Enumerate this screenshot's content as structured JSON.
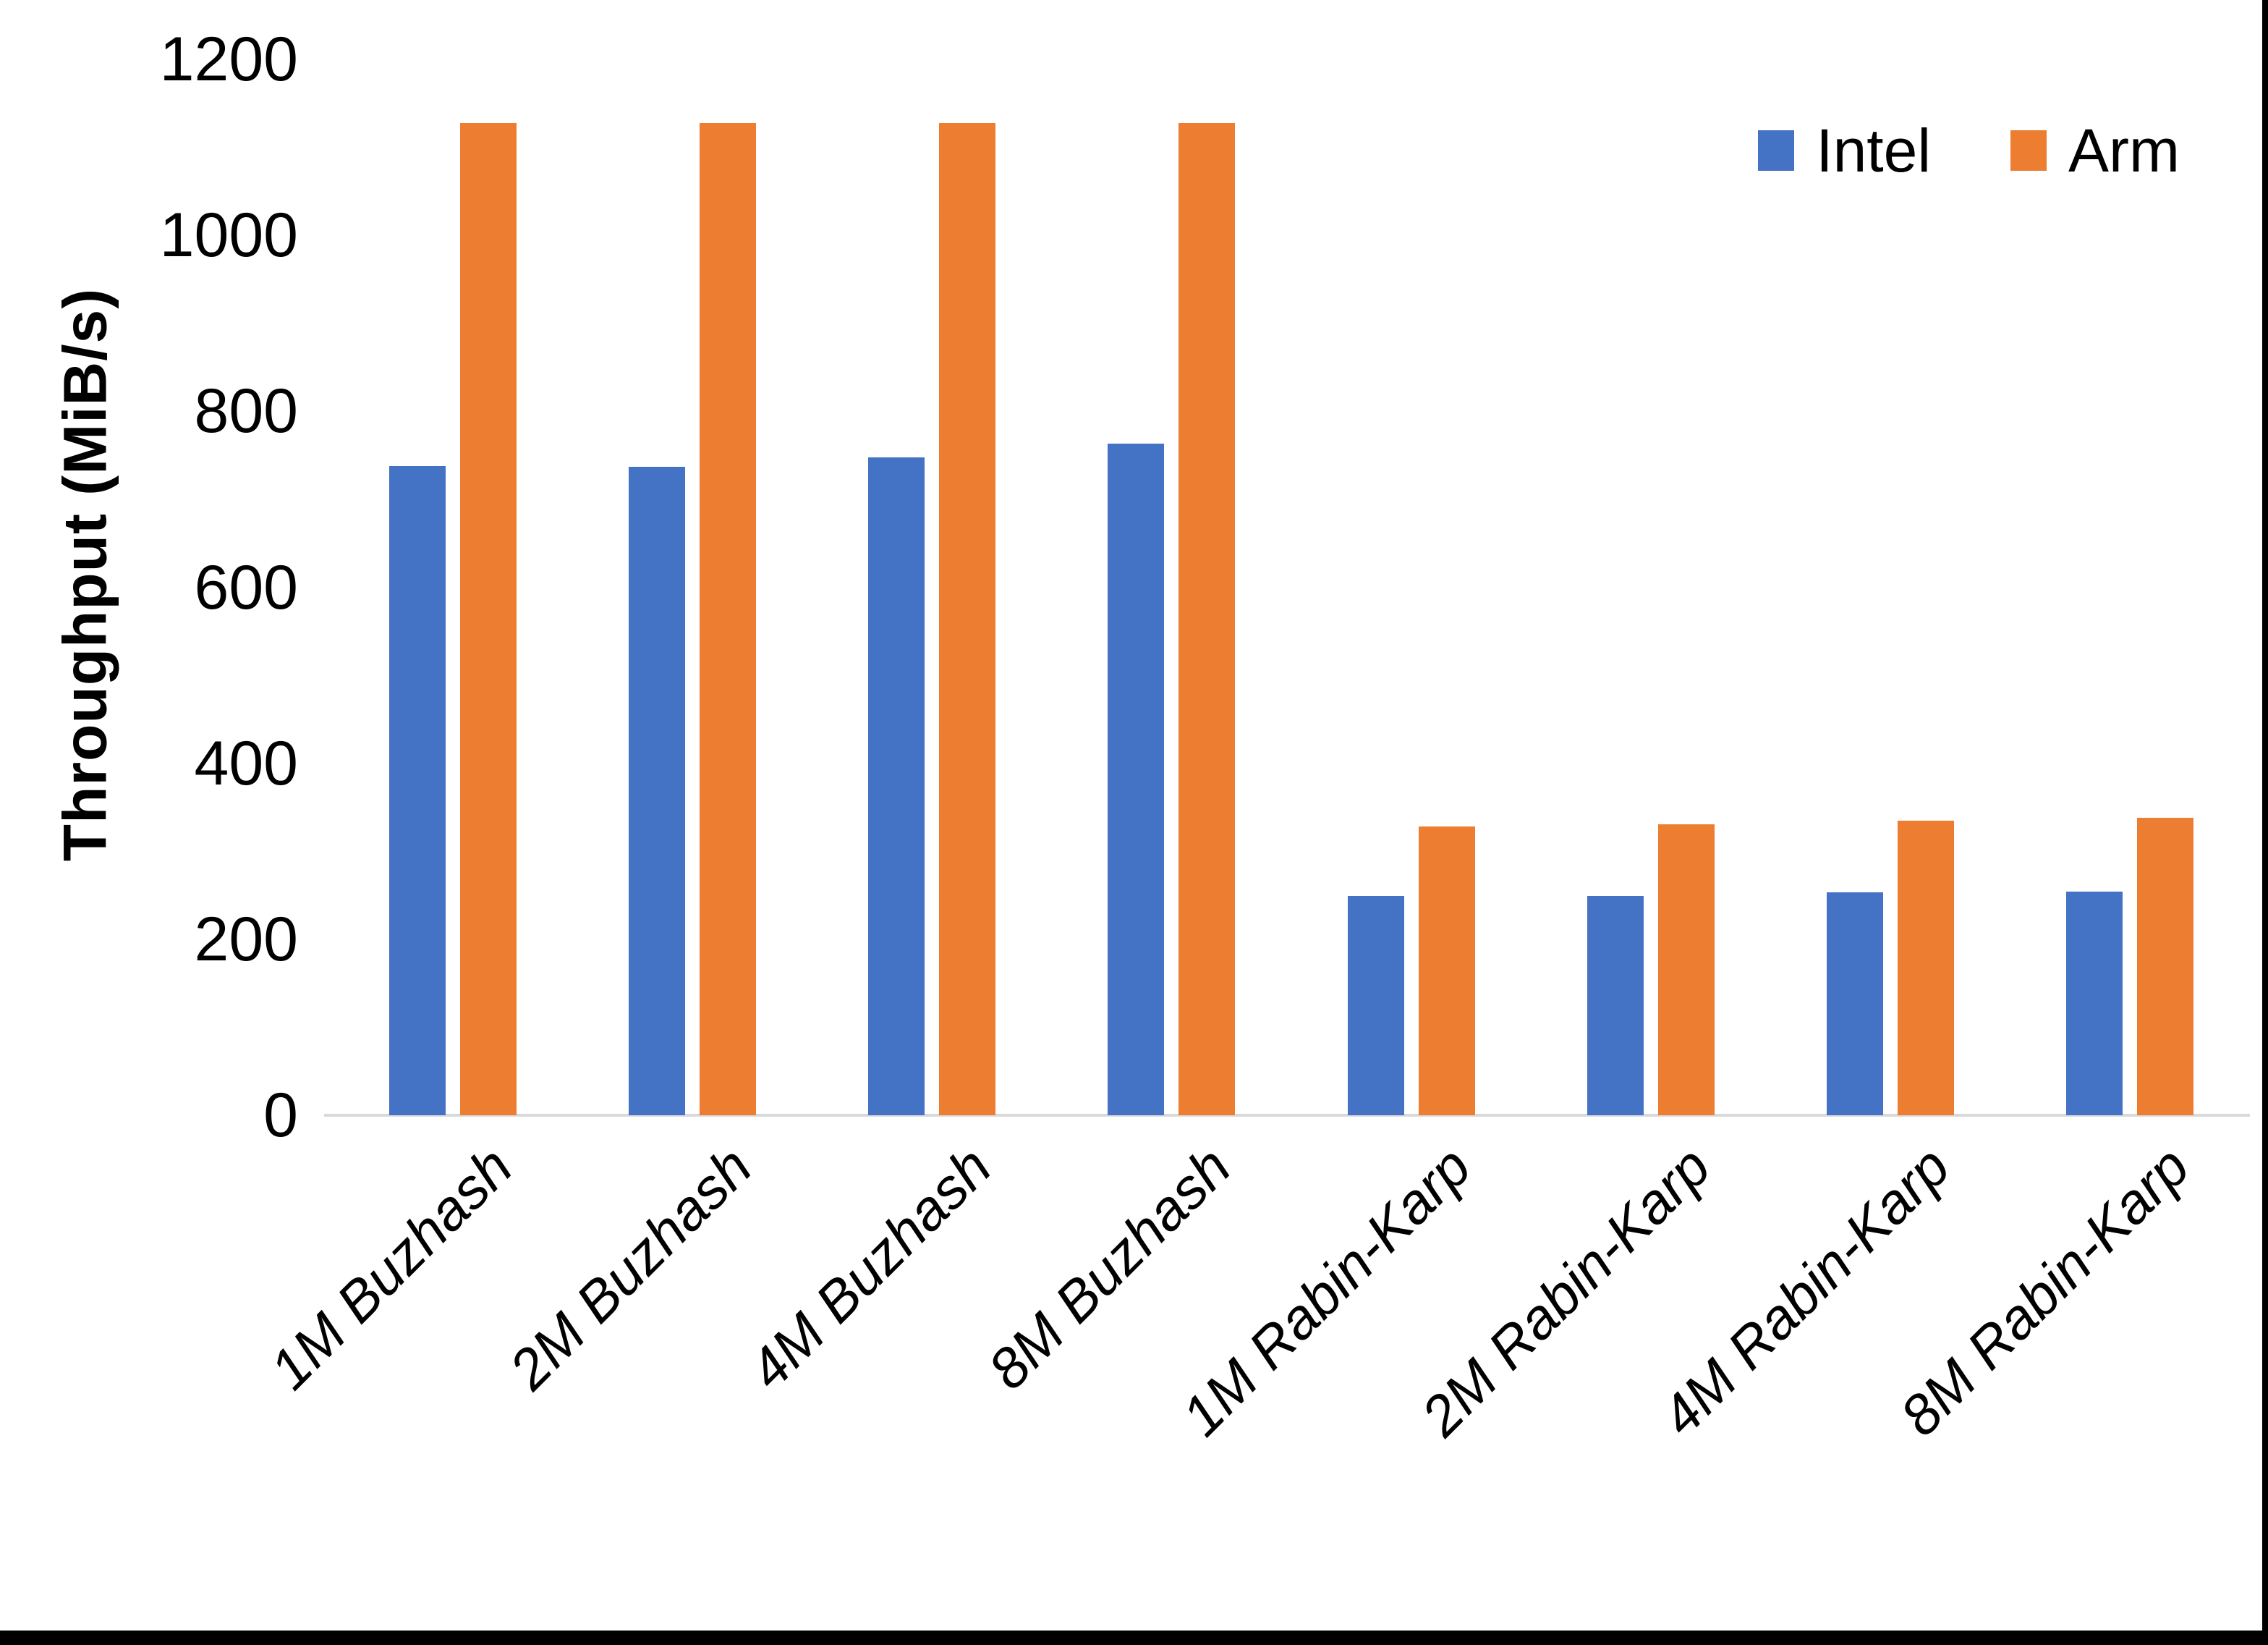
{
  "chart_data": {
    "type": "bar",
    "title": "",
    "xlabel": "",
    "ylabel": "Throughput (MiB/s)",
    "ylim": [
      0,
      1200
    ],
    "yticks": [
      0,
      200,
      400,
      600,
      800,
      1000,
      1200
    ],
    "grid": false,
    "legend_position": "top-right",
    "background_color": "#ffffff",
    "axis_line_color": "#d9d9d9",
    "categories": [
      "1M Buzhash",
      "2M Buzhash",
      "4M Buzhash",
      "8M Buzhash",
      "1M Rabin-Karp",
      "2M Rabin-Karp",
      "4M Rabin-Karp",
      "8M Rabin-Karp"
    ],
    "series": [
      {
        "name": "Intel",
        "color": "#4472C4",
        "values": [
          738,
          737,
          748,
          763,
          249,
          249,
          253,
          254
        ]
      },
      {
        "name": "Arm",
        "color": "#ED7D31",
        "values": [
          1128,
          1128,
          1128,
          1128,
          328,
          331,
          335,
          338
        ]
      }
    ]
  }
}
